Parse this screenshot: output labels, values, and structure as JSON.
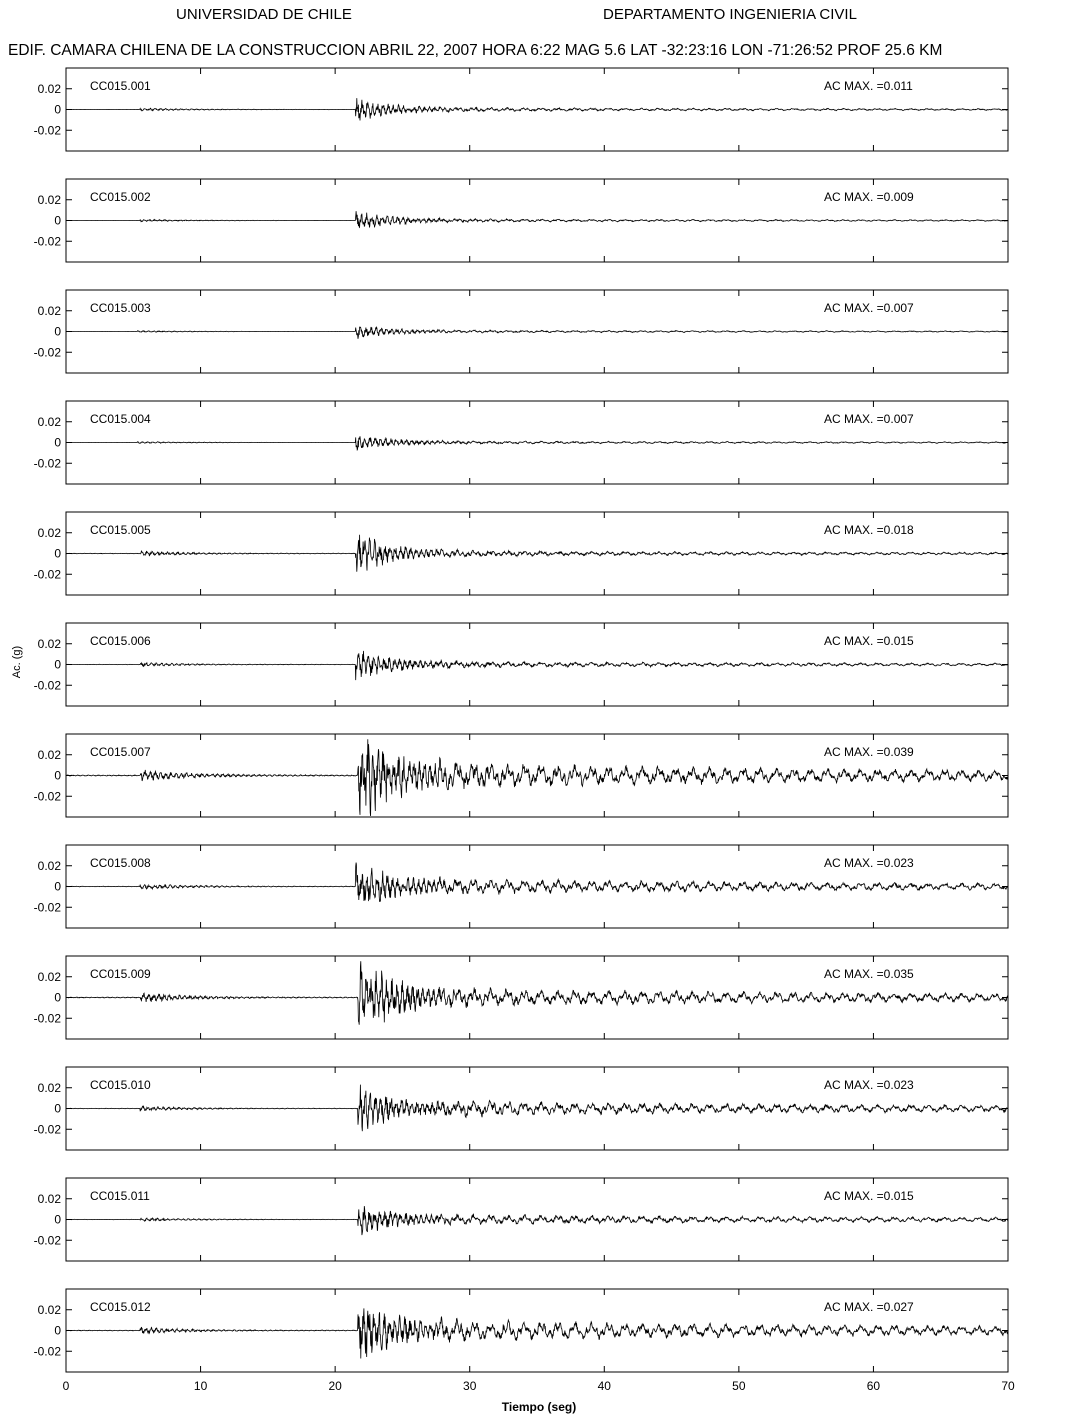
{
  "header": {
    "left": "UNIVERSIDAD DE CHILE",
    "right": "DEPARTAMENTO INGENIERIA CIVIL",
    "event": "EDIF. CAMARA CHILENA DE LA CONSTRUCCION ABRIL 22, 2007 HORA 6:22 MAG 5.6 LAT -32:23:16 LON -71:26:52 PROF 25.6 KM"
  },
  "chart_data": {
    "type": "line",
    "xlabel": "Tiempo (seg)",
    "ylabel": "Ac. (g)",
    "xlim": [
      0,
      70
    ],
    "ylim": [
      -0.04,
      0.04
    ],
    "x_ticks": [
      0,
      10,
      20,
      30,
      40,
      50,
      60,
      70
    ],
    "y_ticks": [
      0.02,
      0,
      -0.02
    ],
    "y_tick_labels": [
      "0.02",
      "0",
      "-0.02"
    ],
    "peak_prefix": "AC MAX. =",
    "series": [
      {
        "name": "CC015.001",
        "ac_max": "0.011",
        "peak": 0.011,
        "p_arrival": 5.5,
        "s_arrival": 21.5,
        "coda": 0.1
      },
      {
        "name": "CC015.002",
        "ac_max": "0.009",
        "peak": 0.009,
        "p_arrival": 5.5,
        "s_arrival": 21.5,
        "coda": 0.1
      },
      {
        "name": "CC015.003",
        "ac_max": "0.007",
        "peak": 0.007,
        "p_arrival": 5.3,
        "s_arrival": 21.5,
        "coda": 0.12
      },
      {
        "name": "CC015.004",
        "ac_max": "0.007",
        "peak": 0.007,
        "p_arrival": 5.3,
        "s_arrival": 21.5,
        "coda": 0.12
      },
      {
        "name": "CC015.005",
        "ac_max": "0.018",
        "peak": 0.018,
        "p_arrival": 5.5,
        "s_arrival": 21.5,
        "coda": 0.08
      },
      {
        "name": "CC015.006",
        "ac_max": "0.015",
        "peak": 0.015,
        "p_arrival": 5.5,
        "s_arrival": 21.5,
        "coda": 0.12
      },
      {
        "name": "CC015.007",
        "ac_max": "0.039",
        "peak": 0.039,
        "p_arrival": 5.5,
        "s_arrival": 21.7,
        "coda": 0.18
      },
      {
        "name": "CC015.008",
        "ac_max": "0.023",
        "peak": 0.023,
        "p_arrival": 5.5,
        "s_arrival": 21.5,
        "coda": 0.22
      },
      {
        "name": "CC015.009",
        "ac_max": "0.035",
        "peak": 0.035,
        "p_arrival": 5.5,
        "s_arrival": 21.7,
        "coda": 0.16
      },
      {
        "name": "CC015.010",
        "ac_max": "0.023",
        "peak": 0.023,
        "p_arrival": 5.5,
        "s_arrival": 21.7,
        "coda": 0.26
      },
      {
        "name": "CC015.011",
        "ac_max": "0.015",
        "peak": 0.015,
        "p_arrival": 5.5,
        "s_arrival": 21.7,
        "coda": 0.24
      },
      {
        "name": "CC015.012",
        "ac_max": "0.027",
        "peak": 0.027,
        "p_arrival": 5.5,
        "s_arrival": 21.7,
        "coda": 0.26
      }
    ]
  }
}
